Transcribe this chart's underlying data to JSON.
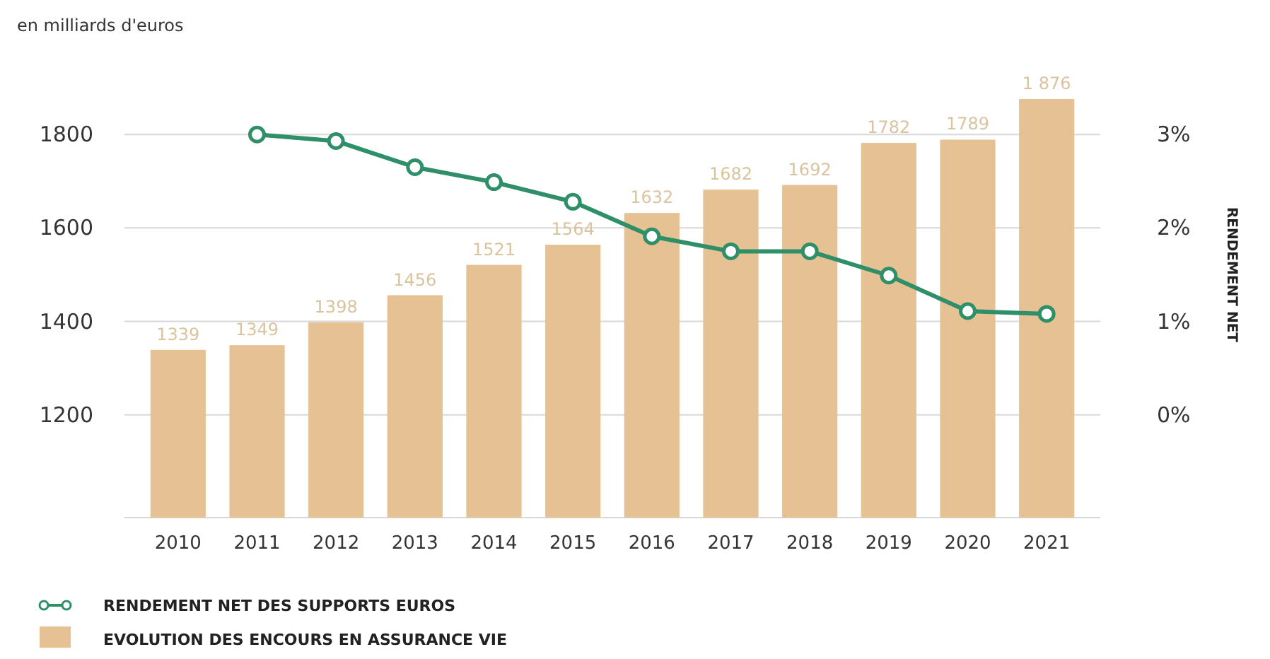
{
  "chart_data": {
    "type": "bar",
    "ylabel": "en milliards d'euros",
    "y2label": "RENDEMENT NET",
    "categories": [
      "2010",
      "2011",
      "2012",
      "2013",
      "2014",
      "2015",
      "2016",
      "2017",
      "2018",
      "2019",
      "2020",
      "2021"
    ],
    "series": [
      {
        "name": "EVOLUTION DES ENCOURS EN ASSURANCE VIE",
        "color": "#e6c194",
        "values": [
          1339,
          1349,
          1398,
          1456,
          1521,
          1564,
          1632,
          1682,
          1692,
          1782,
          1789,
          1876
        ],
        "value_labels": [
          "1339",
          "1349",
          "1398",
          "1456",
          "1521",
          "1564",
          "1632",
          "1682",
          "1692",
          "1782",
          "1789",
          "1 876"
        ]
      },
      {
        "name": "RENDEMENT NET DES SUPPORTS EUROS",
        "type": "line",
        "axis": "y2",
        "color": "#2e8f68",
        "marker": "circle",
        "values": [
          null,
          3.0,
          2.93,
          2.65,
          2.49,
          2.28,
          1.91,
          1.75,
          1.75,
          1.49,
          1.11,
          1.08
        ]
      }
    ],
    "ylim": [
      980,
      1876
    ],
    "yticks": [
      1200,
      1400,
      1600,
      1800
    ],
    "y2lim": [
      -1.1,
      3.38
    ],
    "y2ticks": [
      {
        "value": 0,
        "label": "0%"
      },
      {
        "value": 1,
        "label": "1%"
      },
      {
        "value": 2,
        "label": "2%"
      },
      {
        "value": 3,
        "label": "3%"
      }
    ],
    "grid": "y",
    "legend": "bottom left"
  }
}
